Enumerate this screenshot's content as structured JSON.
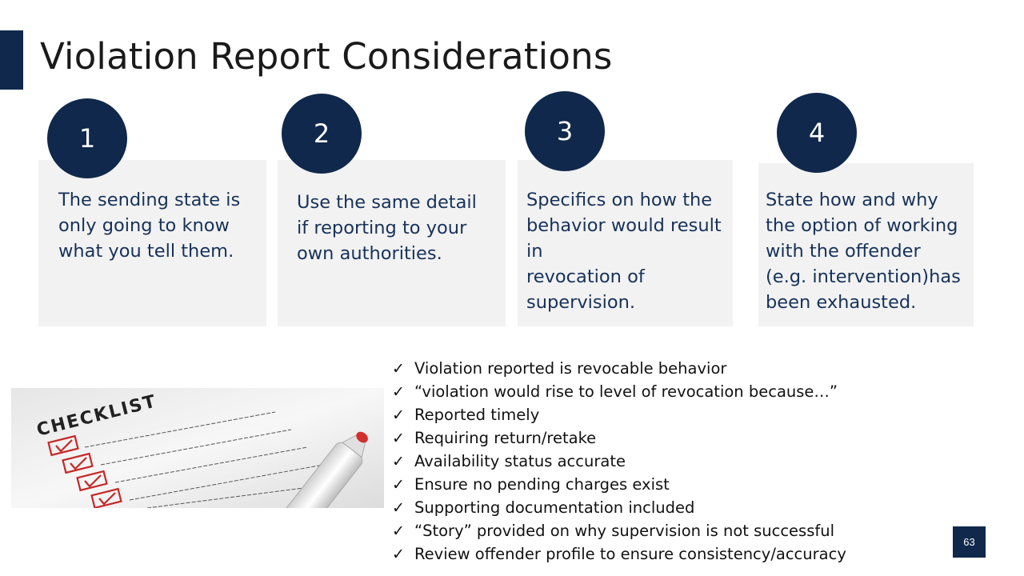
{
  "slide": {
    "title": "Violation Report Considerations",
    "page_number": "63"
  },
  "steps": [
    {
      "number": "1",
      "text": "The sending state is\nonly going to know\nwhat you tell them."
    },
    {
      "number": "2",
      "text": "Use the same detail\nif reporting to your\nown authorities."
    },
    {
      "number": "3",
      "text": "Specifics on how the\nbehavior would result in\nrevocation of\nsupervision."
    },
    {
      "number": "4",
      "text": "State how and why\nthe option of working\nwith the offender\n(e.g. intervention)has\nbeen exhausted."
    }
  ],
  "image": {
    "heading": "CHECKLIST",
    "icon": "checklist-clipboard-image"
  },
  "checklist": {
    "check_glyph": "✓",
    "items": [
      "Violation reported  is revocable behavior",
      "“violation would rise to level of revocation because…”",
      "Reported timely",
      "Requiring return/retake",
      "Availability status accurate",
      "Ensure no pending charges exist",
      "Supporting documentation included",
      "“Story” provided on why supervision is not successful",
      "Review offender profile to ensure consistency/accuracy"
    ]
  },
  "colors": {
    "accent": "#10284b",
    "card": "#f2f2f2",
    "text": "#17325a",
    "marker": "#d32f2f"
  }
}
